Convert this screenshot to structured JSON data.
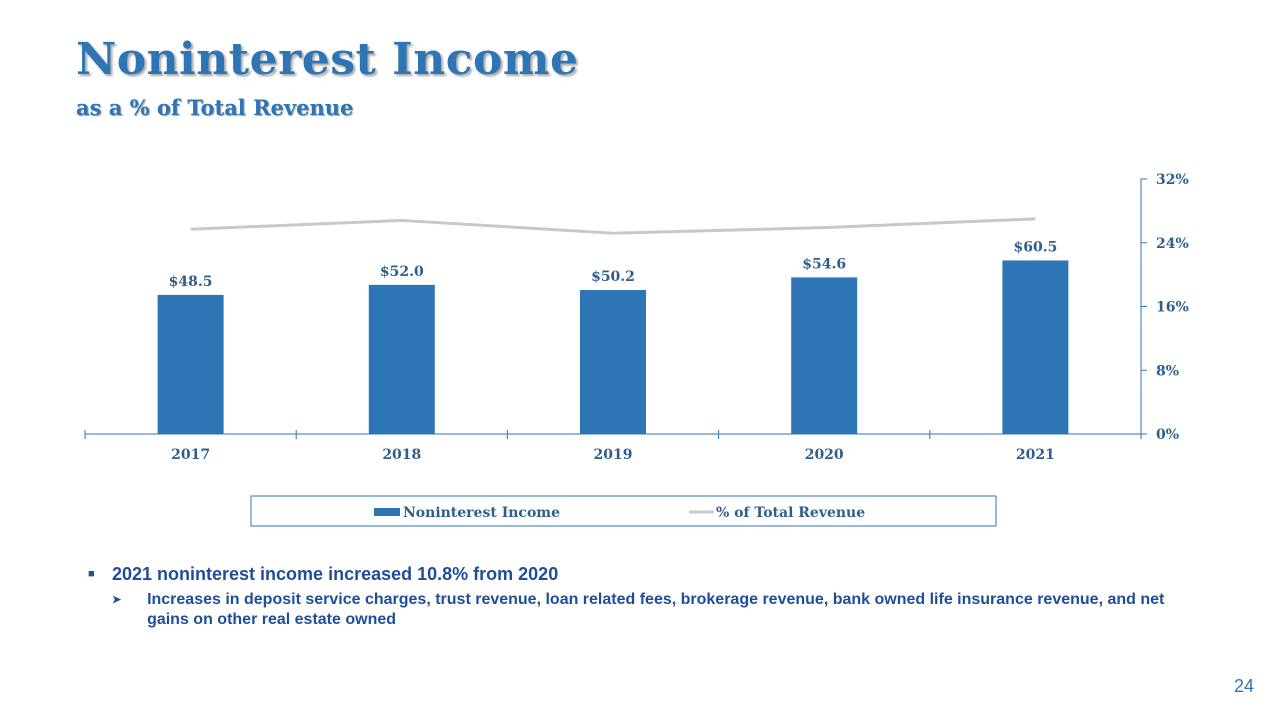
{
  "slide": {
    "title": "Noninterest Income",
    "subtitle": "as a % of Total Revenue",
    "page_number": "24"
  },
  "bullets": {
    "main": "2021 noninterest income increased 10.8% from 2020",
    "sub": "Increases in deposit service charges, trust revenue, loan related fees, brokerage revenue, bank owned life insurance revenue, and net gains on other real estate owned"
  },
  "chart_data": {
    "type": "bar",
    "categories": [
      "2017",
      "2018",
      "2019",
      "2020",
      "2021"
    ],
    "series": [
      {
        "name": "Noninterest Income",
        "type": "bar",
        "values": [
          48.5,
          52.0,
          50.2,
          54.6,
          60.5
        ],
        "labels": [
          "$48.5",
          "$52.0",
          "$50.2",
          "$54.6",
          "$60.5"
        ],
        "color": "#2e75b6",
        "axis": "primary"
      },
      {
        "name": "% of Total Revenue",
        "type": "line",
        "values": [
          25.7,
          26.8,
          25.2,
          25.9,
          27.0
        ],
        "color": "#c8c8c8",
        "axis": "secondary"
      }
    ],
    "primary_axis": {
      "min": 0,
      "max": 88.9,
      "visible": false
    },
    "secondary_axis": {
      "min": 0,
      "max": 32,
      "ticks": [
        0,
        8,
        16,
        24,
        32
      ],
      "tick_labels": [
        "0%",
        "8%",
        "16%",
        "24%",
        "32%"
      ],
      "position": "right"
    },
    "legend": {
      "position": "bottom"
    },
    "grid": false
  }
}
